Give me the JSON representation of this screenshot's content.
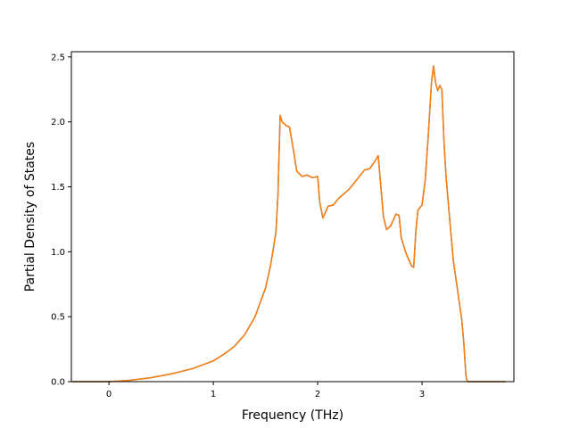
{
  "chart_data": {
    "type": "line",
    "title": "",
    "xlabel": "Frequency (THz)",
    "ylabel": "Partial Density of States",
    "xlim": [
      -0.36,
      3.88
    ],
    "ylim": [
      0,
      2.54
    ],
    "xticks": [
      0,
      1,
      2,
      3
    ],
    "xtick_labels": [
      "0",
      "1",
      "2",
      "3"
    ],
    "yticks": [
      0.0,
      0.5,
      1.0,
      1.5,
      2.0,
      2.5
    ],
    "ytick_labels": [
      "0.0",
      "0.5",
      "1.0",
      "1.5",
      "2.0",
      "2.5"
    ],
    "grid": false,
    "legend": "none",
    "series": [
      {
        "color": "#1f77b4",
        "x": [
          -0.35,
          0.0,
          0.2,
          0.4,
          0.6,
          0.8,
          1.0,
          1.1,
          1.2,
          1.3,
          1.4,
          1.5,
          1.55,
          1.6,
          1.62,
          1.64,
          1.66,
          1.7,
          1.73,
          1.76,
          1.8,
          1.85,
          1.9,
          1.95,
          2.0,
          2.02,
          2.05,
          2.1,
          2.15,
          2.2,
          2.3,
          2.4,
          2.45,
          2.5,
          2.55,
          2.58,
          2.6,
          2.63,
          2.66,
          2.7,
          2.75,
          2.78,
          2.8,
          2.85,
          2.9,
          2.92,
          2.94,
          2.96,
          3.0,
          3.03,
          3.06,
          3.09,
          3.11,
          3.13,
          3.15,
          3.17,
          3.19,
          3.21,
          3.23,
          3.27,
          3.3,
          3.35,
          3.38,
          3.4,
          3.42,
          3.43,
          3.44,
          3.46,
          3.5,
          3.6,
          3.7,
          3.8
        ],
        "y": [
          0.0,
          0.0,
          0.01,
          0.03,
          0.06,
          0.1,
          0.16,
          0.21,
          0.27,
          0.36,
          0.5,
          0.72,
          0.9,
          1.15,
          1.45,
          2.05,
          2.0,
          1.97,
          1.96,
          1.82,
          1.62,
          1.58,
          1.59,
          1.57,
          1.58,
          1.38,
          1.26,
          1.35,
          1.36,
          1.41,
          1.48,
          1.58,
          1.63,
          1.64,
          1.7,
          1.74,
          1.55,
          1.27,
          1.17,
          1.2,
          1.29,
          1.28,
          1.11,
          0.98,
          0.89,
          0.88,
          1.15,
          1.32,
          1.36,
          1.55,
          1.9,
          2.3,
          2.43,
          2.3,
          2.24,
          2.28,
          2.25,
          1.85,
          1.58,
          1.2,
          0.93,
          0.65,
          0.48,
          0.3,
          0.05,
          0.01,
          0.0,
          0.0,
          0.0,
          0.0,
          0.0,
          0.0
        ]
      },
      {
        "color": "#ff7f0e",
        "x": [
          -0.35,
          0.0,
          0.2,
          0.4,
          0.6,
          0.8,
          1.0,
          1.1,
          1.2,
          1.3,
          1.4,
          1.5,
          1.55,
          1.6,
          1.62,
          1.64,
          1.66,
          1.7,
          1.73,
          1.76,
          1.8,
          1.85,
          1.9,
          1.95,
          2.0,
          2.02,
          2.05,
          2.1,
          2.15,
          2.2,
          2.3,
          2.4,
          2.45,
          2.5,
          2.55,
          2.58,
          2.6,
          2.63,
          2.66,
          2.7,
          2.75,
          2.78,
          2.8,
          2.85,
          2.9,
          2.92,
          2.94,
          2.96,
          3.0,
          3.03,
          3.06,
          3.09,
          3.11,
          3.13,
          3.15,
          3.17,
          3.19,
          3.21,
          3.23,
          3.27,
          3.3,
          3.35,
          3.38,
          3.4,
          3.42,
          3.43,
          3.44,
          3.46,
          3.5,
          3.6,
          3.7,
          3.8
        ],
        "y": [
          0.0,
          0.0,
          0.01,
          0.03,
          0.06,
          0.1,
          0.16,
          0.21,
          0.27,
          0.36,
          0.5,
          0.72,
          0.9,
          1.15,
          1.45,
          2.05,
          2.0,
          1.97,
          1.96,
          1.82,
          1.62,
          1.58,
          1.59,
          1.57,
          1.58,
          1.38,
          1.26,
          1.35,
          1.36,
          1.41,
          1.48,
          1.58,
          1.63,
          1.64,
          1.7,
          1.74,
          1.55,
          1.27,
          1.17,
          1.2,
          1.29,
          1.28,
          1.11,
          0.98,
          0.89,
          0.88,
          1.15,
          1.32,
          1.36,
          1.55,
          1.9,
          2.3,
          2.43,
          2.3,
          2.24,
          2.28,
          2.25,
          1.85,
          1.58,
          1.2,
          0.93,
          0.65,
          0.48,
          0.3,
          0.05,
          0.01,
          0.0,
          0.0,
          0.0,
          0.0,
          0.0,
          0.0
        ]
      }
    ]
  }
}
